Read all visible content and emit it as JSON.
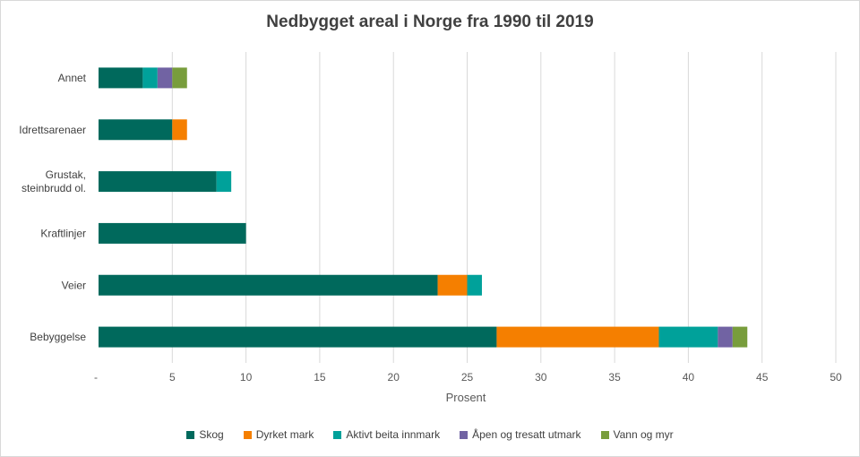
{
  "chart_data": {
    "type": "bar",
    "orientation": "horizontal",
    "stacked": true,
    "title": "Nedbygget areal i Norge fra 1990 til 2019",
    "xlabel": "Prosent",
    "ylabel": "",
    "xlim": [
      0,
      50
    ],
    "xticks": [
      "-",
      "5",
      "10",
      "15",
      "20",
      "25",
      "30",
      "35",
      "40",
      "45",
      "50"
    ],
    "grid": true,
    "legend_position": "bottom",
    "categories": [
      {
        "label": "Annet",
        "lines": [
          "Annet"
        ]
      },
      {
        "label": "Idrettsarenaer",
        "lines": [
          "Idrettsarenaer"
        ]
      },
      {
        "label": "Grustak, steinbrudd ol.",
        "lines": [
          "Grustak,",
          "steinbrudd ol."
        ]
      },
      {
        "label": "Kraftlinjer",
        "lines": [
          "Kraftlinjer"
        ]
      },
      {
        "label": "Veier",
        "lines": [
          "Veier"
        ]
      },
      {
        "label": "Bebyggelse",
        "lines": [
          "Bebyggelse"
        ]
      }
    ],
    "series": [
      {
        "name": "Skog",
        "color": "#00695c",
        "values": [
          3,
          5,
          8,
          10,
          23,
          27
        ]
      },
      {
        "name": "Dyrket mark",
        "color": "#f57f00",
        "values": [
          0,
          1,
          0,
          0,
          2,
          11
        ]
      },
      {
        "name": "Aktivt beita innmark",
        "color": "#00a19a",
        "values": [
          1,
          0,
          1,
          0,
          1,
          4
        ]
      },
      {
        "name": "Åpen og tresatt utmark",
        "color": "#7163a3",
        "values": [
          1,
          0,
          0,
          0,
          0,
          1
        ]
      },
      {
        "name": "Vann og myr",
        "color": "#789d3c",
        "values": [
          1,
          0,
          0,
          0,
          0,
          1
        ]
      }
    ]
  }
}
